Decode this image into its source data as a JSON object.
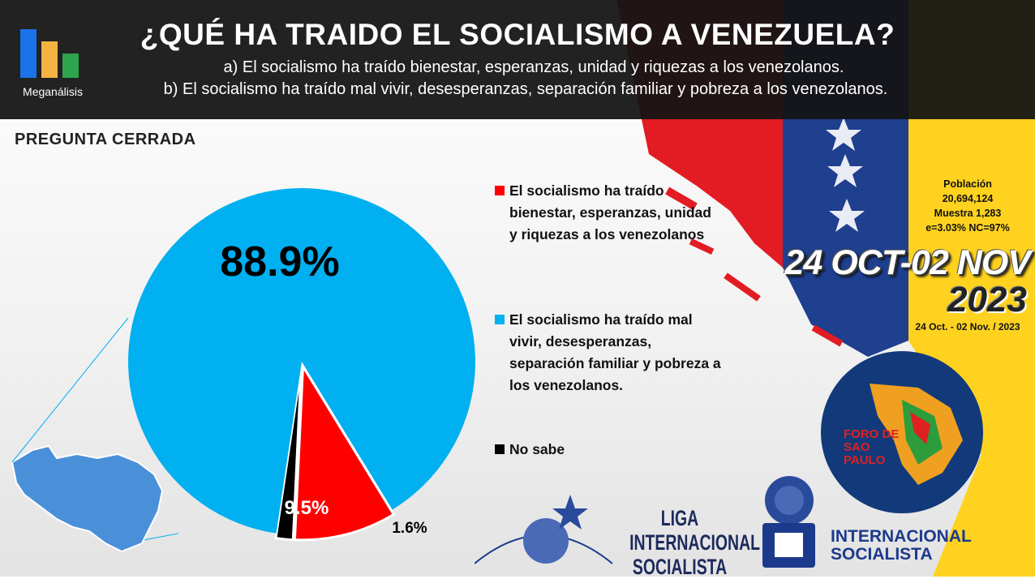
{
  "header": {
    "title": "¿QUÉ HA TRAIDO EL SOCIALISMO A VENEZUELA?",
    "option_a": "a)    El socialismo ha traído bienestar, esperanzas, unidad y riquezas a los venezolanos.",
    "option_b": "b) El socialismo ha traído mal vivir, desesperanzas, separación familiar y pobreza a los venezolanos.",
    "logo_text": "Meganálisis"
  },
  "question_type": "PREGUNTA  CERRADA",
  "chart_data": {
    "type": "pie",
    "series": [
      {
        "name": "El socialismo ha traído bienestar, esperanzas, unidad y riquezas a los venezolanos",
        "value": 9.5,
        "label": "9.5%",
        "color": "#ff0000"
      },
      {
        "name": "El socialismo ha traído mal vivir, desesperanzas, separación familiar y pobreza a los venezolanos.",
        "value": 88.9,
        "label": "88.9%",
        "color": "#00b0f0"
      },
      {
        "name": "No sabe",
        "value": 1.6,
        "label": "1.6%",
        "color": "#000000"
      }
    ]
  },
  "legend": [
    {
      "text": "El socialismo ha traído bienestar, esperanzas, unidad y riquezas a los venezolanos",
      "color": "#ff0000"
    },
    {
      "text": "El socialismo ha traído mal vivir, desesperanzas, separación familiar y pobreza a los venezolanos.",
      "color": "#00b0f0"
    },
    {
      "text": "No sabe",
      "color": "#000000"
    }
  ],
  "info": {
    "poblacion_label": "Población",
    "poblacion_value": "20,694,124",
    "muestra": "Muestra 1,283",
    "error": "e=3.03%  NC=97%"
  },
  "dates": {
    "big": "24 OCT-02 NOV",
    "year": "2023",
    "small": "24 Oct. - 02 Nov. / 2023"
  },
  "logos": {
    "foro_line1": "FORO",
    "foro_line2": "DE",
    "foro_line3": "SAO",
    "foro_line4": "PAULO",
    "lis_line1": "LIGA INTERNACIONAL",
    "lis_line2": "SOCIALISTA",
    "is_line1": "INTERNACIONAL",
    "is_line2": "SOCIALISTA"
  }
}
